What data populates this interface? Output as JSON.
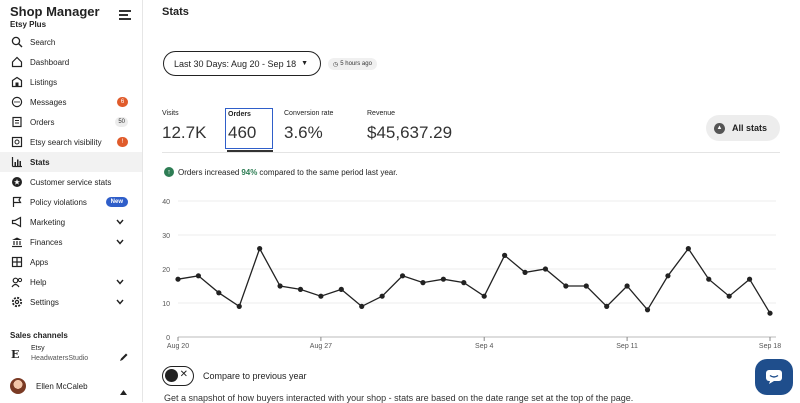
{
  "sidebar": {
    "title": "Shop Manager",
    "subtitle": "Etsy Plus",
    "items": [
      {
        "label": "Search",
        "icon": "search-icon"
      },
      {
        "label": "Dashboard",
        "icon": "home-icon"
      },
      {
        "label": "Listings",
        "icon": "listings-icon"
      },
      {
        "label": "Messages",
        "icon": "messages-icon",
        "badge": "6"
      },
      {
        "label": "Orders",
        "icon": "orders-icon",
        "badge": "50"
      },
      {
        "label": "Etsy search visibility",
        "icon": "visibility-icon",
        "badge": "!"
      },
      {
        "label": "Stats",
        "icon": "stats-icon",
        "active": true
      },
      {
        "label": "Customer service stats",
        "icon": "gear-star-icon"
      },
      {
        "label": "Policy violations",
        "icon": "flag-icon",
        "badge": "New"
      },
      {
        "label": "Marketing",
        "icon": "megaphone-icon"
      },
      {
        "label": "Finances",
        "icon": "bank-icon"
      },
      {
        "label": "Apps",
        "icon": "apps-icon"
      },
      {
        "label": "Help",
        "icon": "help-icon"
      },
      {
        "label": "Settings",
        "icon": "gear-icon"
      }
    ],
    "channels_label": "Sales channels",
    "channel": {
      "logo": "E",
      "name": "Etsy",
      "shop": "HeadwatersStudio"
    },
    "user": {
      "name": "Ellen McCaleb"
    }
  },
  "main": {
    "title": "Stats",
    "date_range": "Last 30 Days: Aug 20 - Sep 18",
    "updated": "5 hours ago",
    "stats": [
      {
        "label": "Visits",
        "value": "12.7K"
      },
      {
        "label": "Orders",
        "value": "460"
      },
      {
        "label": "Conversion rate",
        "value": "3.6%"
      },
      {
        "label": "Revenue",
        "value": "$45,637.29"
      }
    ],
    "all_stats_label": "All stats",
    "increase_prefix": "Orders increased",
    "increase_pct": "94%",
    "increase_suffix": "compared to the same period last year.",
    "compare_label": "Compare to previous year",
    "bottom_text": "Get a snapshot of how buyers interacted with your shop - stats are based on the date range set at the top of the page."
  },
  "colors": {
    "accent": "#2f5ec9",
    "positive": "#2e7d54",
    "badge_orange": "#e05b2b",
    "fab": "#1f4e8c"
  },
  "chart_data": {
    "type": "line",
    "ylim": [
      0,
      40
    ],
    "yticks": [
      0,
      10,
      20,
      30,
      40
    ],
    "xtick_labels": [
      "Aug 20",
      "Aug 27",
      "Sep 4",
      "Sep 11",
      "Sep 18"
    ],
    "xtick_index": [
      0,
      7,
      15,
      22,
      29
    ],
    "values": [
      17,
      18,
      13,
      9,
      26,
      15,
      14,
      12,
      14,
      9,
      12,
      18,
      16,
      17,
      16,
      12,
      24,
      19,
      20,
      15,
      15,
      9,
      15,
      8,
      18,
      26,
      17,
      12,
      17,
      7
    ],
    "grid": true,
    "legend": "none"
  }
}
